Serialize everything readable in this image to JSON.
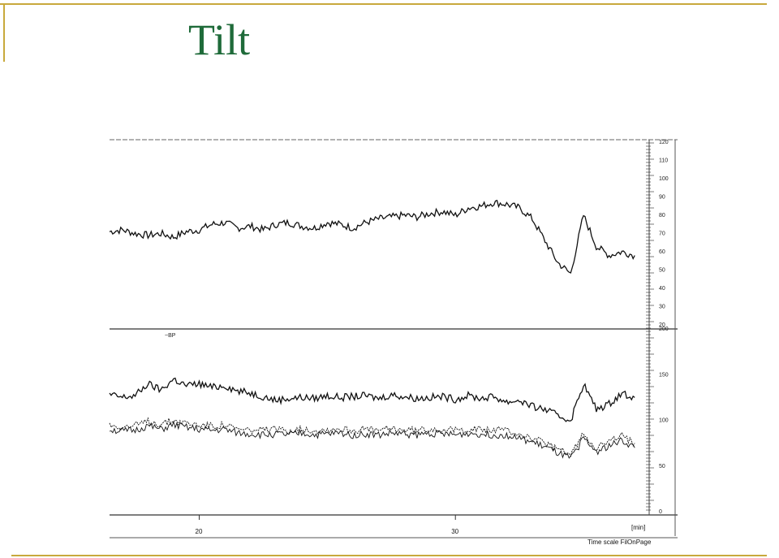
{
  "slide": {
    "title": "Tilt"
  },
  "colors": {
    "frame": "#c8a93c",
    "title": "#1f6b3a",
    "trace": "#111111"
  },
  "chart_data": {
    "type": "line",
    "panels": [
      {
        "name": "top",
        "ylim": [
          20,
          120
        ],
        "yticks": [
          "120",
          "110",
          "100",
          "90",
          "80",
          "70",
          "60",
          "50",
          "40",
          "30",
          "20"
        ],
        "series": [
          {
            "x": [
              16.5,
              17,
              17.5,
              18,
              18.5,
              19,
              19.5,
              20,
              20.5,
              21,
              21.5,
              22,
              22.5,
              23,
              23.5,
              24,
              24.5,
              25,
              25.5,
              26,
              26.5,
              27,
              27.5,
              28,
              28.5,
              29,
              29.5,
              30,
              30.5,
              31,
              31.5,
              32,
              32.5,
              33,
              33.5,
              34,
              34.5,
              35,
              35.5,
              36,
              36.5,
              37
            ],
            "values": [
              71,
              72,
              70,
              69,
              70,
              68,
              71,
              72,
              75,
              76,
              73,
              74,
              72,
              75,
              76,
              74,
              73,
              76,
              75,
              73,
              76,
              78,
              79,
              80,
              79,
              81,
              82,
              80,
              84,
              85,
              87,
              86,
              84,
              78,
              66,
              54,
              48,
              80,
              63,
              58,
              60,
              58
            ]
          }
        ]
      },
      {
        "name": "bottom",
        "ylim": [
          0,
          200
        ],
        "yticks": [
          "200",
          "150",
          "100",
          "50",
          "0"
        ],
        "series": [
          {
            "x": [
              16.5,
              17,
              17.5,
              18,
              18.5,
              19,
              19.5,
              20,
              20.5,
              21,
              21.5,
              22,
              22.5,
              23,
              23.5,
              24,
              24.5,
              25,
              25.5,
              26,
              26.5,
              27,
              27.5,
              28,
              28.5,
              29,
              29.5,
              30,
              30.5,
              31,
              31.5,
              32,
              32.5,
              33,
              33.5,
              34,
              34.5,
              35,
              35.5,
              36,
              36.5,
              37
            ],
            "values": [
              128,
              125,
              127,
              140,
              133,
              145,
              138,
              140,
              136,
              138,
              132,
              130,
              126,
              122,
              124,
              125,
              124,
              127,
              125,
              126,
              127,
              124,
              128,
              126,
              124,
              125,
              126,
              123,
              127,
              124,
              126,
              120,
              122,
              115,
              112,
              105,
              100,
              140,
              112,
              118,
              130,
              125
            ]
          },
          {
            "x": [
              16.5,
              17,
              17.5,
              18,
              18.5,
              19,
              19.5,
              20,
              20.5,
              21,
              21.5,
              22,
              22.5,
              23,
              23.5,
              24,
              24.5,
              25,
              25.5,
              26,
              26.5,
              27,
              27.5,
              28,
              28.5,
              29,
              29.5,
              30,
              30.5,
              31,
              31.5,
              32,
              32.5,
              33,
              33.5,
              34,
              34.5,
              35,
              35.5,
              36,
              36.5,
              37
            ],
            "values": [
              90,
              88,
              89,
              94,
              90,
              95,
              92,
              90,
              89,
              90,
              86,
              85,
              84,
              85,
              84,
              86,
              84,
              85,
              86,
              84,
              85,
              84,
              86,
              85,
              84,
              86,
              85,
              84,
              86,
              85,
              84,
              84,
              80,
              76,
              71,
              64,
              58,
              80,
              66,
              72,
              78,
              70
            ]
          },
          {
            "x": [
              16.5,
              17,
              17.5,
              18,
              18.5,
              19,
              19.5,
              20,
              20.5,
              21,
              21.5,
              22,
              22.5,
              23,
              23.5,
              24,
              24.5,
              25,
              25.5,
              26,
              26.5,
              27,
              27.5,
              28,
              28.5,
              29,
              29.5,
              30,
              30.5,
              31,
              31.5,
              32,
              32.5,
              33,
              33.5,
              34,
              34.5,
              35,
              35.5,
              36,
              36.5,
              37
            ],
            "values": [
              95,
              93,
              94,
              99,
              96,
              100,
              97,
              95,
              94,
              95,
              90,
              89,
              89,
              90,
              89,
              91,
              89,
              90,
              91,
              89,
              90,
              89,
              91,
              90,
              89,
              91,
              90,
              89,
              91,
              90,
              89,
              89,
              85,
              80,
              75,
              68,
              62,
              86,
              70,
              77,
              83,
              75
            ]
          }
        ]
      }
    ],
    "xlim": [
      16.5,
      37.5
    ],
    "xticks": [
      20,
      30
    ],
    "xtick_labels": [
      "20",
      "30"
    ],
    "xlabel": "[min]",
    "scale_note": "Time scale  FilOnPage",
    "annotation": "~BP"
  }
}
